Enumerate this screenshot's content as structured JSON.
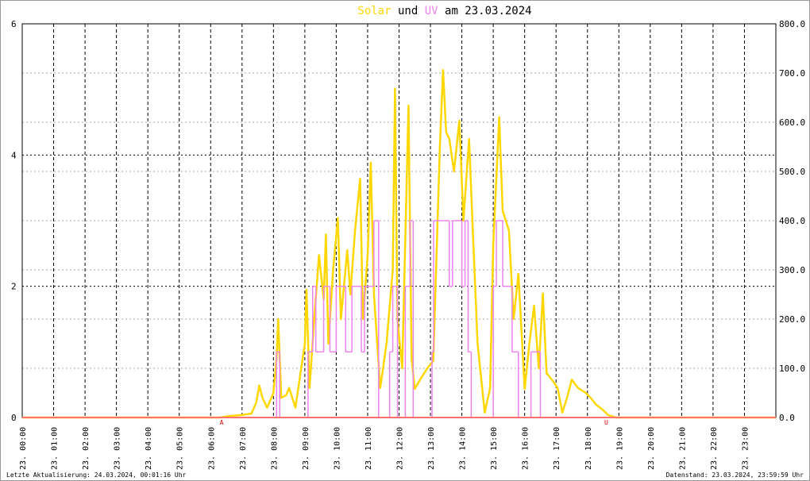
{
  "chart_data": {
    "type": "line",
    "title_parts": [
      "Solar",
      "und",
      "UV",
      "am 23.03.2024"
    ],
    "xlim": [
      0,
      24
    ],
    "xticks": [
      {
        "value": 0,
        "label": "23. 00:00"
      },
      {
        "value": 1,
        "label": "23. 01:00"
      },
      {
        "value": 2,
        "label": "23. 02:00"
      },
      {
        "value": 3,
        "label": "23. 03:00"
      },
      {
        "value": 4,
        "label": "23. 04:00"
      },
      {
        "value": 5,
        "label": "23. 05:00"
      },
      {
        "value": 6,
        "label": "23. 06:00"
      },
      {
        "value": 7,
        "label": "23. 07:00"
      },
      {
        "value": 8,
        "label": "23. 08:00"
      },
      {
        "value": 9,
        "label": "23. 09:00"
      },
      {
        "value": 10,
        "label": "23. 10:00"
      },
      {
        "value": 11,
        "label": "23. 11:00"
      },
      {
        "value": 12,
        "label": "23. 12:00"
      },
      {
        "value": 13,
        "label": "23. 13:00"
      },
      {
        "value": 14,
        "label": "23. 14:00"
      },
      {
        "value": 15,
        "label": "23. 15:00"
      },
      {
        "value": 16,
        "label": "23. 16:00"
      },
      {
        "value": 17,
        "label": "23. 17:00"
      },
      {
        "value": 18,
        "label": "23. 18:00"
      },
      {
        "value": 19,
        "label": "23. 19:00"
      },
      {
        "value": 20,
        "label": "23. 20:00"
      },
      {
        "value": 21,
        "label": "23. 21:00"
      },
      {
        "value": 22,
        "label": "23. 22:00"
      },
      {
        "value": 23,
        "label": "23. 23:00"
      }
    ],
    "ylim": [
      0,
      6
    ],
    "yticks": [
      0,
      2,
      4,
      6
    ],
    "y2lim": [
      0,
      800
    ],
    "y2ticks": [
      {
        "value": 0,
        "label": "0.0"
      },
      {
        "value": 100,
        "label": "100.0"
      },
      {
        "value": 200,
        "label": "200.0"
      },
      {
        "value": 300,
        "label": "300.0"
      },
      {
        "value": 400,
        "label": "400.0"
      },
      {
        "value": 500,
        "label": "500.0"
      },
      {
        "value": 600,
        "label": "600.0"
      },
      {
        "value": 700,
        "label": "700.0"
      },
      {
        "value": 800,
        "label": "800.0"
      }
    ],
    "grid": true,
    "series": [
      {
        "name": "Solar",
        "color": "#ffd700",
        "axis": "y2",
        "x": [
          0,
          6.3,
          6.6,
          7.0,
          7.3,
          7.45,
          7.55,
          7.65,
          7.8,
          8.0,
          8.1,
          8.15,
          8.25,
          8.4,
          8.5,
          8.7,
          9.0,
          9.05,
          9.15,
          9.3,
          9.45,
          9.6,
          9.67,
          9.75,
          9.9,
          10.05,
          10.15,
          10.35,
          10.45,
          10.6,
          10.76,
          10.85,
          11.0,
          11.1,
          11.2,
          11.4,
          11.6,
          11.8,
          11.87,
          11.95,
          12.1,
          12.3,
          12.4,
          12.5,
          12.7,
          12.9,
          13.09,
          13.3,
          13.4,
          13.5,
          13.6,
          13.75,
          13.92,
          14.05,
          14.23,
          14.35,
          14.5,
          14.73,
          14.9,
          15.0,
          15.19,
          15.3,
          15.5,
          15.65,
          15.8,
          16.0,
          16.15,
          16.3,
          16.45,
          16.58,
          16.7,
          16.9,
          17.05,
          17.2,
          17.35,
          17.5,
          17.7,
          17.95,
          18.1,
          18.28,
          18.5,
          18.66,
          18.9,
          24
        ],
        "values": [
          0,
          0,
          3,
          5,
          8,
          30,
          65,
          40,
          20,
          50,
          120,
          200,
          40,
          45,
          60,
          20,
          150,
          260,
          60,
          200,
          330,
          240,
          372,
          150,
          300,
          405,
          200,
          340,
          250,
          380,
          485,
          200,
          330,
          518,
          250,
          60,
          150,
          300,
          668,
          200,
          100,
          634,
          120,
          58,
          80,
          100,
          115,
          550,
          706,
          580,
          566,
          500,
          603,
          400,
          566,
          380,
          150,
          10,
          60,
          350,
          610,
          420,
          380,
          200,
          292,
          58,
          150,
          227,
          100,
          252,
          90,
          74,
          60,
          10,
          40,
          77,
          60,
          50,
          40,
          26,
          15,
          5,
          0,
          0
        ]
      },
      {
        "name": "UV",
        "color": "#ee82ee",
        "axis": "y",
        "x": [
          0,
          8.1,
          8.2,
          9.1,
          9.25,
          9.35,
          9.6,
          9.8,
          10.0,
          10.3,
          10.5,
          10.8,
          10.9,
          11.2,
          11.35,
          11.7,
          11.8,
          11.95,
          12.2,
          12.35,
          12.45,
          13.05,
          13.1,
          13.6,
          13.7,
          14.0,
          14.1,
          14.2,
          14.3,
          15.0,
          15.1,
          15.3,
          15.6,
          15.8,
          16.2,
          16.5
        ],
        "values": [
          0,
          1,
          0,
          1,
          2,
          1,
          2,
          1,
          2,
          1,
          2,
          1,
          2,
          3,
          0,
          1,
          2,
          0,
          2,
          3,
          0,
          1,
          3,
          2,
          3,
          2,
          3,
          1,
          0,
          2,
          3,
          2,
          1,
          0,
          1,
          0
        ]
      }
    ],
    "annotations": [
      {
        "text": "A",
        "x": 6.35
      },
      {
        "text": "U",
        "x": 18.6
      }
    ],
    "footer_left": "Letzte Aktualisierung: 24.03.2024, 00:01:16 Uhr",
    "footer_right": "Datenstand: 23.03.2024, 23:59:59 Uhr"
  }
}
